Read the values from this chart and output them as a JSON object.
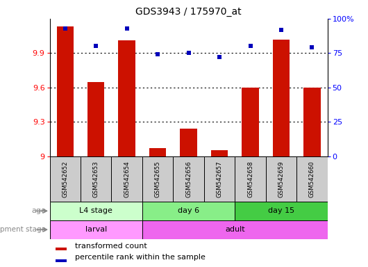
{
  "title": "GDS3943 / 175970_at",
  "samples": [
    "GSM542652",
    "GSM542653",
    "GSM542654",
    "GSM542655",
    "GSM542656",
    "GSM542657",
    "GSM542658",
    "GSM542659",
    "GSM542660"
  ],
  "transformed_count": [
    10.13,
    9.65,
    10.01,
    9.07,
    9.24,
    9.05,
    9.6,
    10.02,
    9.6
  ],
  "percentile_rank": [
    93,
    80,
    93,
    74,
    75,
    72,
    80,
    92,
    79
  ],
  "ylim_left": [
    9.0,
    10.2
  ],
  "ylim_right": [
    0,
    100
  ],
  "yticks_left": [
    9.0,
    9.3,
    9.6,
    9.9
  ],
  "yticks_right": [
    0,
    25,
    50,
    75,
    100
  ],
  "ytick_labels_right": [
    "0",
    "25",
    "50",
    "75",
    "100%"
  ],
  "bar_color": "#cc1100",
  "dot_color": "#0000bb",
  "age_groups": [
    {
      "label": "L4 stage",
      "start": 0,
      "end": 3,
      "color": "#ccffcc"
    },
    {
      "label": "day 6",
      "start": 3,
      "end": 6,
      "color": "#88ee88"
    },
    {
      "label": "day 15",
      "start": 6,
      "end": 9,
      "color": "#44cc44"
    }
  ],
  "dev_groups": [
    {
      "label": "larval",
      "start": 0,
      "end": 3,
      "color": "#ff99ff"
    },
    {
      "label": "adult",
      "start": 3,
      "end": 9,
      "color": "#ee66ee"
    }
  ],
  "legend_bar_color": "#cc1100",
  "legend_dot_color": "#0000bb",
  "legend_bar_label": "transformed count",
  "legend_dot_label": "percentile rank within the sample",
  "grid_color": "black",
  "grid_style": "dotted",
  "bar_width": 0.55
}
